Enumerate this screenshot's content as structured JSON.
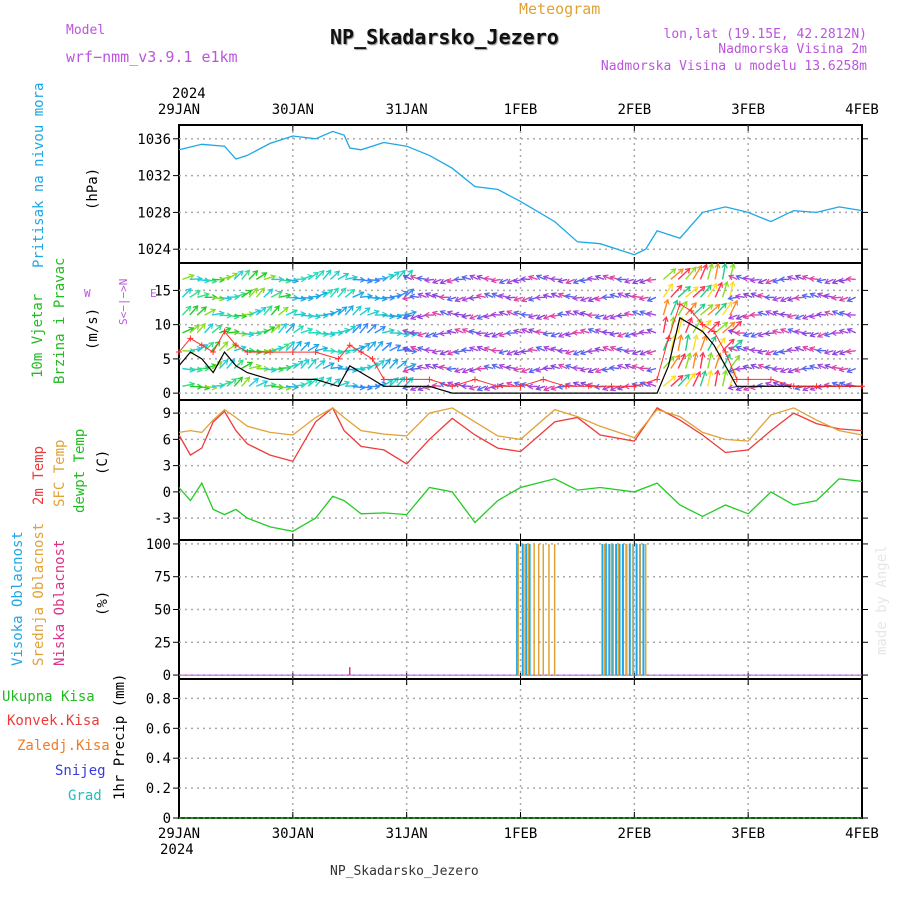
{
  "header": {
    "model_label": "Model",
    "model_name": "wrf−nmm_v3.9.1  e1km",
    "meteogram_label": "Meteogram",
    "station": "NP_Skadarsko_Jezero",
    "coords": "lon,lat (19.15E, 42.2812N)",
    "elevation": "Nadmorska Visina 2m",
    "model_elevation": "Nadmorska Visina u modelu 13.6258m",
    "year": "2024",
    "footer_station": "NP_Skadarsko_Jezero",
    "watermark": "made by Angel"
  },
  "x_axis": {
    "ticks": [
      "29JAN",
      "30JAN",
      "31JAN",
      "1FEB",
      "2FEB",
      "3FEB",
      "4FEB"
    ],
    "year_bottom": "2024"
  },
  "colors": {
    "pressure": "#1ea7e6",
    "wind_speed": "#000000",
    "gust": "#ff3030",
    "temp2m": "#ee3a3a",
    "sfc_temp": "#e1a236",
    "dewpt": "#22cc22",
    "cloud_high": "#1ea7e6",
    "cloud_mid": "#e1a236",
    "cloud_low": "#dd3388",
    "label_pressure": "#1ea7e6",
    "label_wind": "#22bb22",
    "label_model": "#bb55dd"
  },
  "panels": {
    "pressure": {
      "label1": "Pritisak na nivou mora",
      "unit": "(hPa)",
      "ticks": [
        "1024",
        "1028",
        "1032",
        "1036"
      ]
    },
    "wind": {
      "label1": "10m Vjetar",
      "label2": "Brzina i Pravac",
      "unit": "(m/s)",
      "ticks": [
        "0",
        "5",
        "10",
        "15"
      ],
      "compass_ns": "S<−|−>N",
      "compass_w": "W",
      "compass_e": "E"
    },
    "temp": {
      "label1": "2m Temp",
      "label2": "SFC Temp",
      "label3": "dewpt Temp",
      "unit": "(C)",
      "ticks": [
        "-3",
        "0",
        "3",
        "6",
        "9"
      ]
    },
    "cloud": {
      "label1": "Visoka Oblacnost",
      "label2": "Srednja Oblacnost",
      "label3": "Niska Oblacnost",
      "unit": "(%)",
      "ticks": [
        "0",
        "25",
        "50",
        "75",
        "100"
      ]
    },
    "precip": {
      "legend": [
        "Ukupna Kisa",
        "Konvek.Kisa",
        "Zaledj.Kisa",
        "Snijeg",
        "Grad"
      ],
      "legend_colors": [
        "#22bb22",
        "#ee3a3a",
        "#f07b2a",
        "#3a3ae0",
        "#22bbbb"
      ],
      "unit": "1hr Precip (mm)",
      "ticks": [
        "0",
        "0.2",
        "0.4",
        "0.6",
        "0.8"
      ]
    }
  },
  "chart_data": [
    {
      "type": "line",
      "title": "",
      "ylabel": "Pritisak na nivou mora (hPa)",
      "ylim": [
        1022.5,
        1037.5
      ],
      "x_days": [
        0,
        0.2,
        0.4,
        0.5,
        0.6,
        0.8,
        1.0,
        1.2,
        1.35,
        1.45,
        1.5,
        1.6,
        1.8,
        2.0,
        2.2,
        2.4,
        2.6,
        2.8,
        3.0,
        3.3,
        3.5,
        3.7,
        4.0,
        4.1,
        4.2,
        4.4,
        4.6,
        4.8,
        5.0,
        5.2,
        5.4,
        5.6,
        5.8,
        6.0
      ],
      "series": [
        {
          "name": "",
          "values": [
            1034.8,
            1035.4,
            1035.2,
            1033.8,
            1034.2,
            1035.5,
            1036.3,
            1036.0,
            1036.8,
            1036.4,
            1035.0,
            1034.8,
            1035.6,
            1035.2,
            1034.2,
            1032.8,
            1030.8,
            1030.5,
            1029.2,
            1027.0,
            1024.8,
            1024.6,
            1023.4,
            1024.0,
            1026.0,
            1025.2,
            1028.0,
            1028.6,
            1028.0,
            1027.0,
            1028.2,
            1028.0,
            1028.6,
            1028.2
          ]
        }
      ]
    },
    {
      "type": "line",
      "title": "",
      "ylabel": "10m Vjetar Brzina i Pravac (m/s)",
      "ylim": [
        -1,
        19
      ],
      "x_days": [
        0,
        0.1,
        0.2,
        0.3,
        0.4,
        0.5,
        0.6,
        0.8,
        1.0,
        1.2,
        1.4,
        1.5,
        1.6,
        1.7,
        1.8,
        2.0,
        2.2,
        2.4,
        2.6,
        2.8,
        3.0,
        3.2,
        3.4,
        3.6,
        3.8,
        4.0,
        4.2,
        4.3,
        4.4,
        4.5,
        4.6,
        4.7,
        4.8,
        4.9,
        5.0,
        5.2,
        5.4,
        5.6,
        5.8,
        6.0
      ],
      "series": [
        {
          "name": "",
          "values": [
            4,
            6,
            5,
            3,
            6,
            4,
            3,
            2,
            2,
            2,
            1,
            4,
            3,
            2,
            1,
            1,
            1,
            0,
            0,
            0,
            0,
            0,
            0,
            0,
            0,
            0,
            0,
            4,
            11,
            10,
            9,
            7,
            4,
            1,
            1,
            1,
            1,
            1,
            1,
            1
          ]
        },
        {
          "name": "",
          "values": [
            6,
            8,
            7,
            6,
            9,
            7,
            6,
            6,
            6,
            6,
            5,
            7,
            6,
            5,
            2,
            2,
            2,
            1,
            2,
            1,
            1,
            2,
            1,
            1,
            1,
            1,
            2,
            8,
            13,
            12,
            10,
            9,
            6,
            2,
            2,
            2,
            1,
            1,
            1,
            1
          ]
        }
      ]
    },
    {
      "type": "line",
      "title": "",
      "ylabel": "Temp (C)",
      "ylim": [
        -5.5,
        10.5
      ],
      "x_days": [
        0,
        0.1,
        0.2,
        0.3,
        0.4,
        0.5,
        0.6,
        0.8,
        1.0,
        1.2,
        1.35,
        1.45,
        1.6,
        1.8,
        2.0,
        2.2,
        2.4,
        2.6,
        2.8,
        3.0,
        3.3,
        3.5,
        3.7,
        4.0,
        4.2,
        4.4,
        4.6,
        4.8,
        5.0,
        5.2,
        5.4,
        5.6,
        5.8,
        6.0
      ],
      "series": [
        {
          "name": "2m Temp",
          "values": [
            6.5,
            4.2,
            5.0,
            8.0,
            9.2,
            7.0,
            5.5,
            4.2,
            3.5,
            8.0,
            9.6,
            7.0,
            5.2,
            4.8,
            3.2,
            6.0,
            8.4,
            6.5,
            5.0,
            4.6,
            8.0,
            8.5,
            6.5,
            5.8,
            9.6,
            8.2,
            6.5,
            4.5,
            4.8,
            7.0,
            9.0,
            7.8,
            7.2,
            7.0
          ]
        },
        {
          "name": "SFC Temp",
          "values": [
            6.8,
            7.0,
            6.8,
            8.2,
            9.4,
            8.5,
            7.5,
            6.8,
            6.5,
            8.5,
            9.6,
            8.5,
            7.0,
            6.6,
            6.4,
            9.0,
            9.6,
            8.0,
            6.4,
            6.0,
            9.4,
            8.6,
            7.5,
            6.2,
            9.4,
            8.6,
            6.8,
            6.0,
            5.8,
            8.8,
            9.6,
            8.2,
            7.0,
            6.5
          ]
        },
        {
          "name": "dewpt Temp",
          "values": [
            0.5,
            -1.0,
            1.0,
            -2.0,
            -2.6,
            -2.0,
            -3.0,
            -4.0,
            -4.5,
            -3.0,
            -0.5,
            -1.0,
            -2.5,
            -2.4,
            -2.6,
            0.5,
            0.0,
            -3.5,
            -1.0,
            0.5,
            1.5,
            0.2,
            0.5,
            0.0,
            1.0,
            -1.5,
            -2.8,
            -1.5,
            -2.5,
            0.0,
            -1.5,
            -1.0,
            1.5,
            1.2
          ]
        }
      ]
    },
    {
      "type": "bar",
      "title": "",
      "ylabel": "Oblacnost (%)",
      "ylim": [
        -3,
        103
      ],
      "series": [
        {
          "name": "Visoka Oblacnost",
          "x_days": [
            2.97,
            3.02,
            3.05,
            3.08,
            3.72,
            3.75,
            3.78,
            3.81,
            3.84,
            3.87,
            3.9,
            3.93,
            3.96,
            3.99,
            4.02,
            4.05,
            4.08
          ],
          "values": [
            100,
            100,
            100,
            100,
            100,
            100,
            100,
            100,
            100,
            100,
            100,
            100,
            100,
            100,
            100,
            100,
            100
          ]
        },
        {
          "name": "Srednja Oblacnost",
          "x_days": [
            2.98,
            3.03,
            3.07,
            3.12,
            3.16,
            3.2,
            3.25,
            3.3,
            3.74,
            3.8,
            3.86,
            3.93,
            3.99,
            4.05,
            4.1
          ],
          "values": [
            100,
            100,
            100,
            100,
            100,
            100,
            100,
            100,
            100,
            100,
            100,
            100,
            100,
            100,
            100
          ]
        },
        {
          "name": "Niska Oblacnost",
          "x_days": [
            1.5
          ],
          "values": [
            6
          ]
        }
      ]
    },
    {
      "type": "bar",
      "title": "",
      "ylabel": "1hr Precip (mm)",
      "ylim": [
        0,
        0.93
      ],
      "series": [
        {
          "name": "Ukupna Kisa",
          "x_days": [],
          "values": []
        }
      ]
    }
  ]
}
